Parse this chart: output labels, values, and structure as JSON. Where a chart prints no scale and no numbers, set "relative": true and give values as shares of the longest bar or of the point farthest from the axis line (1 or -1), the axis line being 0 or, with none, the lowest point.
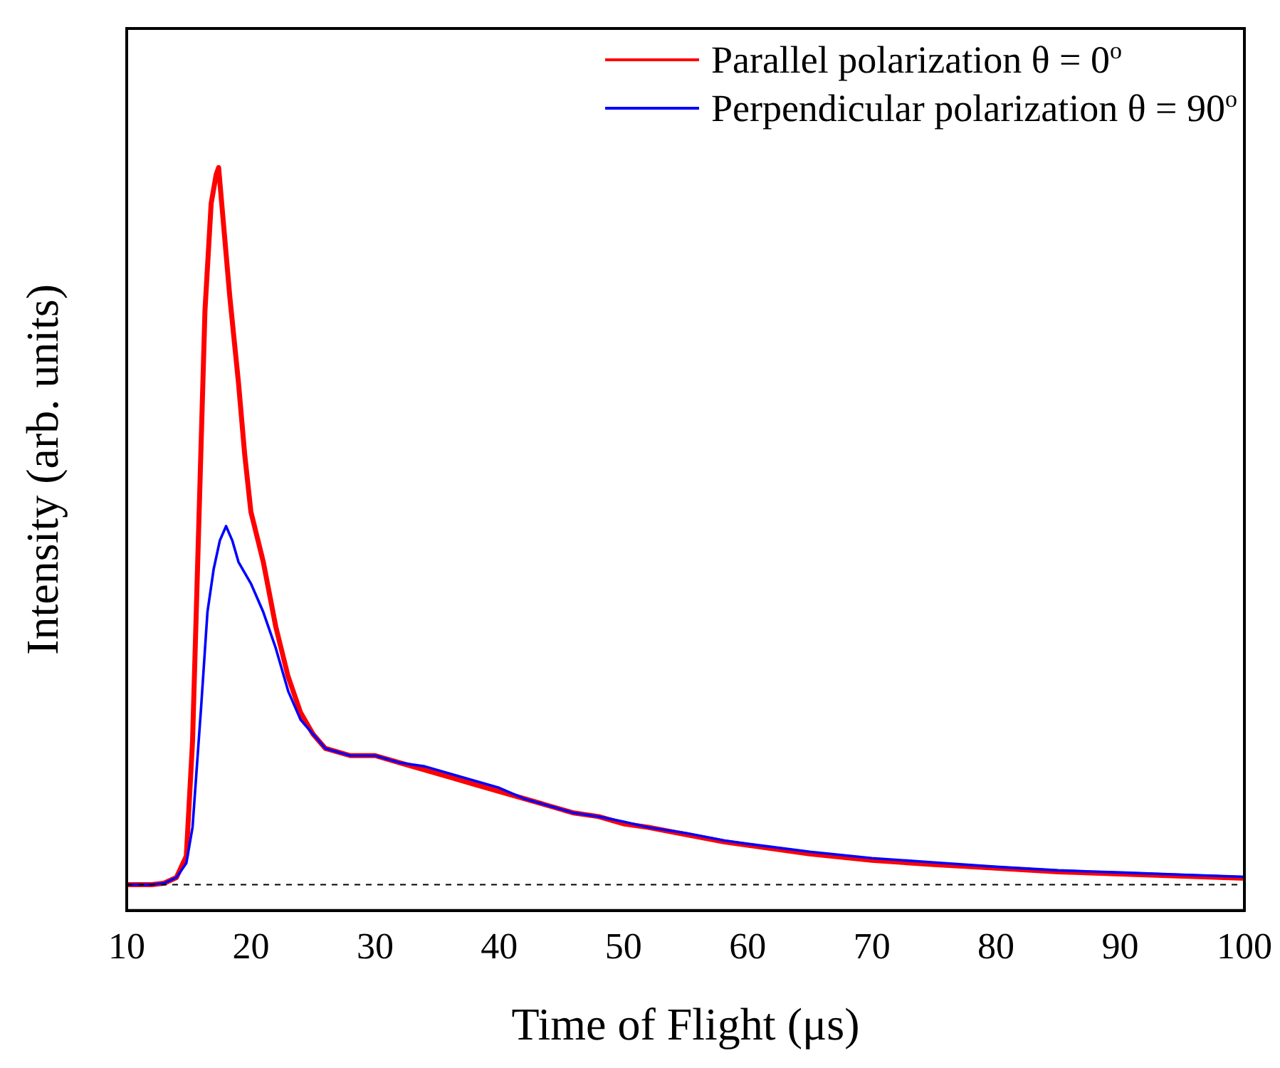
{
  "chart_data": {
    "type": "line",
    "xlabel": "Time of Flight (μs)",
    "ylabel": "Intensity (arb. units)",
    "relative": true,
    "xlim": [
      10,
      100
    ],
    "xticks": [
      10,
      20,
      30,
      40,
      50,
      60,
      70,
      80,
      90,
      100
    ],
    "legend": "top right",
    "grid": false,
    "marker": "none",
    "line_style": "solid",
    "ref_lines": [
      {
        "axis": "y",
        "value": 0,
        "color": "#000000",
        "line_style": "dashed"
      }
    ],
    "series": [
      {
        "name": "Parallel polarization θ = 0$^{o}$",
        "color": "#ff0000",
        "x": [
          10,
          12,
          13,
          14,
          14.8,
          15.3,
          15.8,
          16.3,
          16.8,
          17.2,
          17.4,
          17.8,
          18.3,
          19,
          19.5,
          20,
          21,
          22,
          23,
          24,
          25,
          26,
          28,
          30,
          32,
          34,
          36,
          38,
          40,
          42,
          44,
          46,
          48,
          50,
          52,
          55,
          58,
          60,
          65,
          70,
          75,
          80,
          85,
          90,
          95,
          100
        ],
        "values": [
          0,
          0,
          0.002,
          0.01,
          0.04,
          0.2,
          0.5,
          0.8,
          0.95,
          0.99,
          1,
          0.92,
          0.82,
          0.7,
          0.6,
          0.52,
          0.45,
          0.36,
          0.29,
          0.24,
          0.21,
          0.19,
          0.18,
          0.18,
          0.17,
          0.16,
          0.15,
          0.14,
          0.13,
          0.12,
          0.11,
          0.1,
          0.095,
          0.085,
          0.08,
          0.07,
          0.06,
          0.055,
          0.043,
          0.034,
          0.028,
          0.023,
          0.018,
          0.015,
          0.012,
          0.009
        ]
      },
      {
        "name": "Perpendicular polarization θ = 90$^{o}$",
        "color": "#0000ff",
        "x": [
          10,
          12,
          13,
          14,
          14.8,
          15.3,
          16,
          16.5,
          17,
          17.5,
          18,
          18.5,
          19,
          20,
          21,
          22,
          23,
          24,
          25,
          26,
          28,
          30,
          32,
          34,
          36,
          38,
          40,
          42,
          44,
          46,
          48,
          50,
          52,
          55,
          58,
          60,
          65,
          70,
          75,
          80,
          85,
          90,
          95,
          100
        ],
        "values": [
          0,
          0,
          0.002,
          0.01,
          0.03,
          0.08,
          0.25,
          0.38,
          0.44,
          0.48,
          0.5,
          0.48,
          0.45,
          0.42,
          0.38,
          0.33,
          0.27,
          0.23,
          0.21,
          0.19,
          0.18,
          0.18,
          0.17,
          0.165,
          0.155,
          0.145,
          0.135,
          0.12,
          0.11,
          0.1,
          0.095,
          0.088,
          0.08,
          0.072,
          0.062,
          0.057,
          0.046,
          0.037,
          0.031,
          0.025,
          0.02,
          0.017,
          0.014,
          0.011
        ]
      }
    ]
  }
}
